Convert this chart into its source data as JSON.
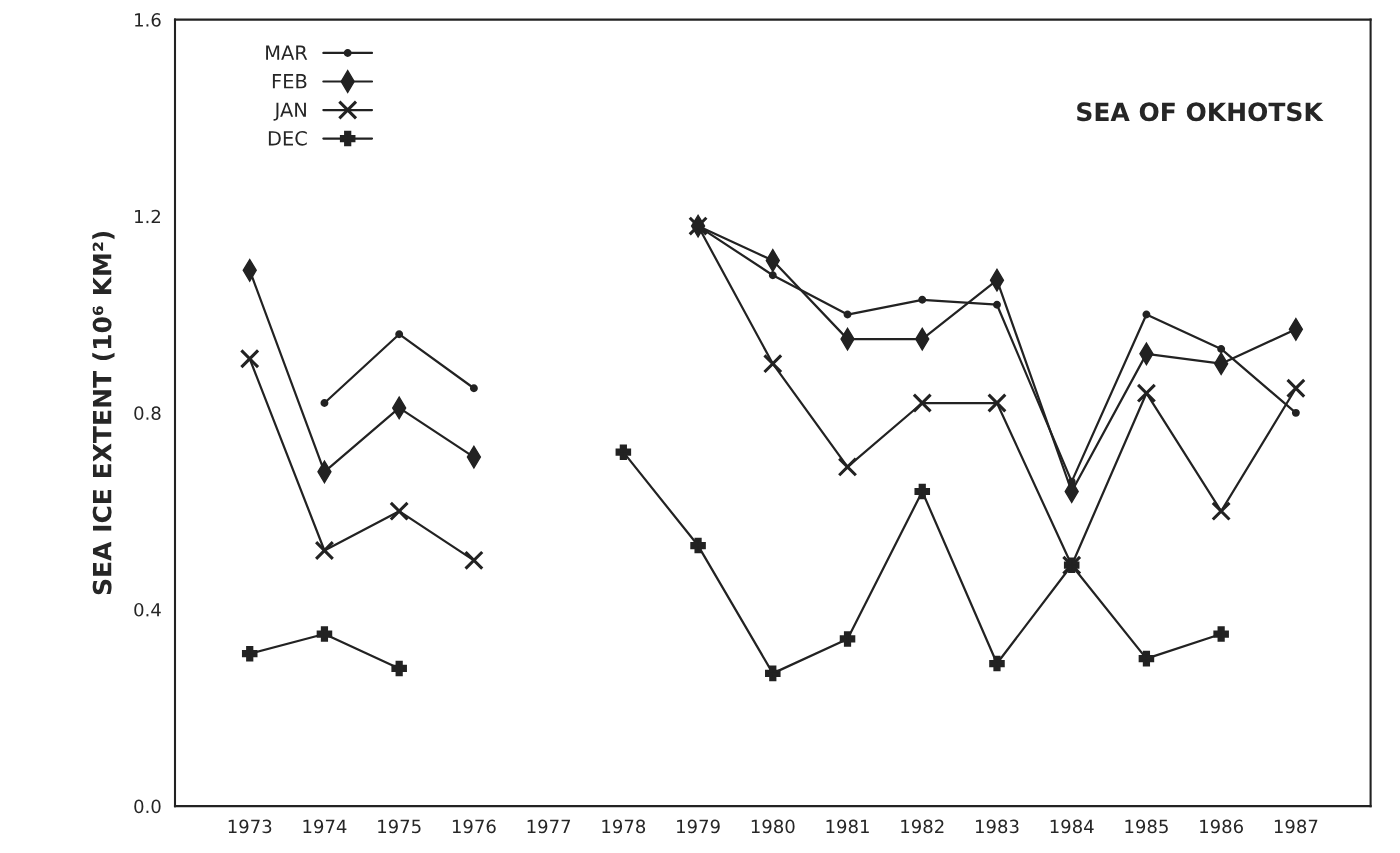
{
  "chart_data": {
    "type": "line",
    "title": "SEA OF OKHOTSK",
    "ylabel": "SEA ICE EXTENT (10⁶ KM²)",
    "categories": [
      "1973",
      "1974",
      "1975",
      "1976",
      "1977",
      "1978",
      "1979",
      "1980",
      "1981",
      "1982",
      "1983",
      "1984",
      "1985",
      "1986",
      "1987"
    ],
    "series": [
      {
        "name": "MAR",
        "color": "#222222",
        "marker": "circle",
        "values": [
          null,
          0.82,
          0.96,
          0.85,
          null,
          null,
          1.18,
          1.08,
          1.0,
          1.03,
          1.02,
          0.66,
          1.0,
          0.93,
          0.8
        ]
      },
      {
        "name": "FEB",
        "color": "#222222",
        "marker": "diamond",
        "values": [
          1.09,
          0.68,
          0.81,
          0.71,
          null,
          null,
          1.18,
          1.11,
          0.95,
          0.95,
          1.07,
          0.64,
          0.92,
          0.9,
          0.97
        ]
      },
      {
        "name": "JAN",
        "color": "#222222",
        "marker": "cross",
        "values": [
          0.91,
          0.52,
          0.6,
          0.5,
          null,
          null,
          1.18,
          0.9,
          0.69,
          0.82,
          0.82,
          0.49,
          0.84,
          0.6,
          0.85
        ]
      },
      {
        "name": "DEC",
        "color": "#222222",
        "marker": "plus",
        "values": [
          0.31,
          0.35,
          0.28,
          null,
          null,
          0.72,
          0.53,
          0.27,
          0.34,
          0.64,
          0.29,
          0.49,
          0.3,
          0.35,
          null
        ]
      }
    ],
    "ylim": [
      0,
      1.6
    ],
    "yticks": [
      {
        "value": 0,
        "label": "0.0"
      },
      0.4,
      0.8,
      1.2,
      1.6
    ],
    "legend": "top left",
    "grid": false
  }
}
